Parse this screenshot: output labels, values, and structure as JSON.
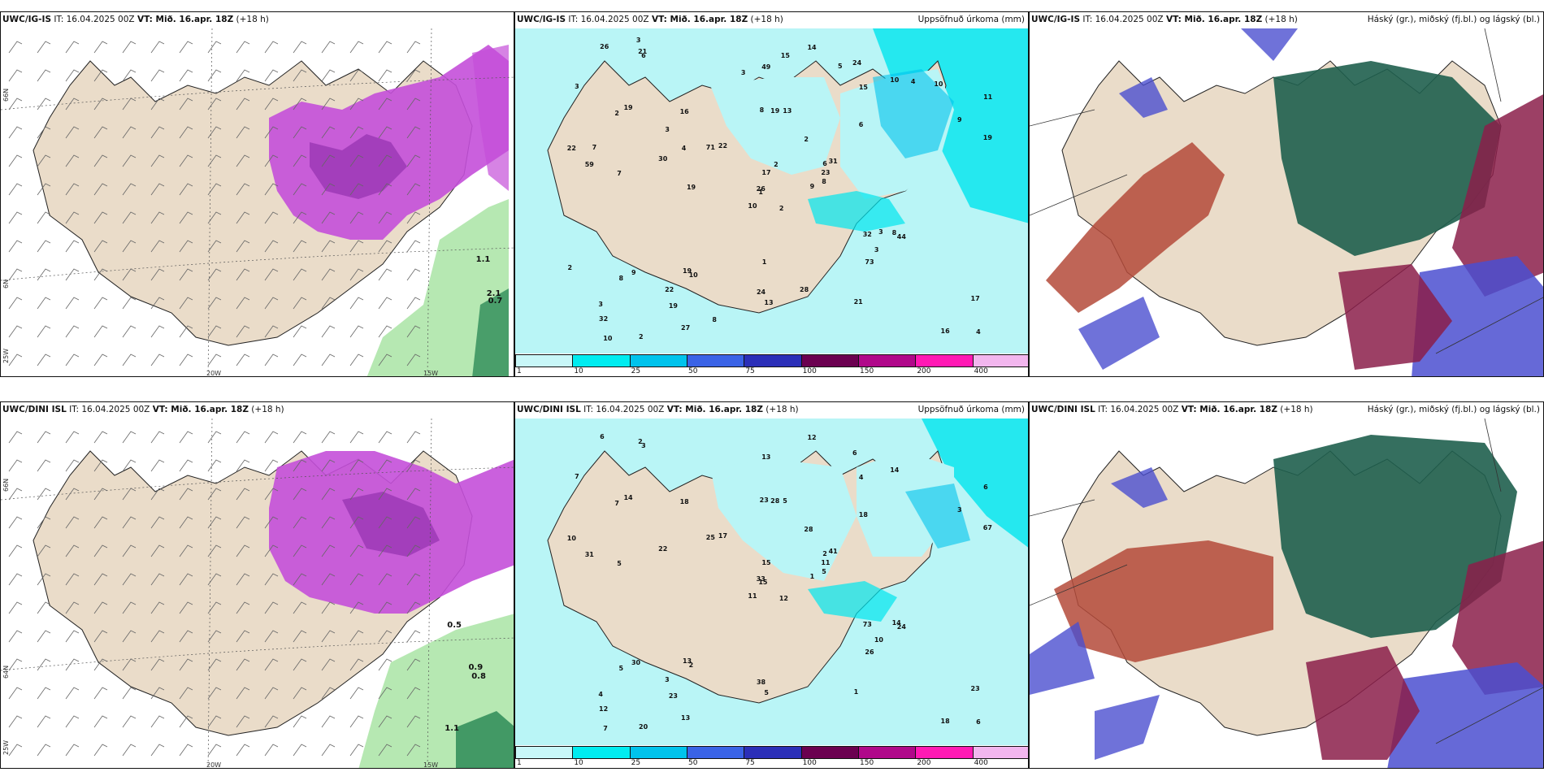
{
  "colors": {
    "land": "#eadcc9",
    "sea_light": "#b9f5f6",
    "sea_mid": "#00e5ee",
    "purple": "#c44fd9",
    "green_light": "#b6e8b2",
    "green_dark": "#2e8b57",
    "cloud_high": "#1f5f4e",
    "cloud_mid": "#8b1f4a",
    "cloud_low": "#4b4fd0",
    "cloud_red": "#b44a3a"
  },
  "panels": {
    "p1": {
      "model": "UWC/IG-IS",
      "it": "IT: 16.04.2025 00Z",
      "vt": "VT: Mið. 16.apr. 18Z",
      "lead": "(+18 h)",
      "right_title": ""
    },
    "p2": {
      "model": "UWC/IG-IS",
      "it": "IT: 16.04.2025 00Z",
      "vt": "VT: Mið. 16.apr. 18Z",
      "lead": "(+18 h)",
      "right_title": "Uppsöfnuð úrkoma (mm)"
    },
    "p3": {
      "model": "UWC/IG-IS",
      "it": "IT: 16.04.2025 00Z",
      "vt": "VT: Mið. 16.apr. 18Z",
      "lead": "(+18 h)",
      "right_title": "Háský (gr.), miðský (fj.bl.) og lágský (bl.)"
    },
    "p4": {
      "model": "UWC/DINI ISL",
      "it": "IT: 16.04.2025 00Z",
      "vt": "VT: Mið. 16.apr. 18Z",
      "lead": "(+18 h)",
      "right_title": ""
    },
    "p5": {
      "model": "UWC/DINI ISL",
      "it": "IT: 16.04.2025 00Z",
      "vt": "VT: Mið. 16.apr. 18Z",
      "lead": "(+18 h)",
      "right_title": "Uppsöfnuð úrkoma (mm)"
    },
    "p6": {
      "model": "UWC/DINI ISL",
      "it": "IT: 16.04.2025 00Z",
      "vt": "VT: Mið. 16.apr. 18Z",
      "lead": "(+18 h)",
      "right_title": "Háský (gr.), miðský (fj.bl.) og lágský (bl.)"
    }
  },
  "axis_labels": {
    "lon_20w": "20W",
    "lon_15w": "15W",
    "lat_66n": "66N",
    "lat_64n": "64N",
    "lat_25w": "25W",
    "lat_6n": "6N"
  },
  "colorbar": {
    "ticks": [
      "1",
      "10",
      "25",
      "50",
      "75",
      "100",
      "150",
      "200",
      "400"
    ],
    "colors": [
      "#c8f7f8",
      "#00ecf0",
      "#00c3ec",
      "#3a63e6",
      "#2b2fb8",
      "#6b0050",
      "#b0088a",
      "#ff19b4",
      "#f2b6ee"
    ]
  },
  "precip_labels_top": [
    "2",
    "2",
    "1",
    "3",
    "6",
    "10",
    "24",
    "13",
    "15",
    "9",
    "6",
    "4",
    "7",
    "11",
    "10",
    "6",
    "2",
    "8",
    "2",
    "9",
    "22",
    "32",
    "19",
    "19",
    "31",
    "44",
    "19",
    "49",
    "59",
    "32",
    "19",
    "26",
    "24",
    "17",
    "16",
    "10",
    "19",
    "16",
    "17",
    "8",
    "14",
    "71",
    "30",
    "73",
    "27",
    "22",
    "23",
    "10",
    "13",
    "8",
    "8",
    "9",
    "3",
    "3",
    "21",
    "22",
    "21",
    "26",
    "28",
    "10",
    "15",
    "19",
    "7",
    "3",
    "4",
    "3",
    "5",
    "3",
    "2",
    "2",
    "1",
    "8",
    "3",
    "4"
  ],
  "precip_labels_bottom": [
    "12",
    "7",
    "15",
    "4",
    "2",
    "2",
    "6",
    "5",
    "4",
    "1",
    "3",
    "6",
    "5",
    "6",
    "11",
    "18",
    "20",
    "23",
    "28",
    "30",
    "17",
    "12",
    "23",
    "28",
    "41",
    "24",
    "14",
    "13",
    "31",
    "73",
    "67",
    "33",
    "38",
    "15",
    "18",
    "14",
    "13",
    "18",
    "23",
    "14",
    "12",
    "25",
    "22",
    "26",
    "13",
    "10",
    "11",
    "7",
    "5",
    "5",
    "5",
    "3",
    "7",
    "10",
    "1",
    "3",
    "2",
    "6"
  ],
  "precip_small_top": [
    "0.7",
    "1.1",
    "2.1"
  ],
  "precip_small_bottom": [
    "0.8",
    "0.5",
    "0.9",
    "1.1"
  ]
}
